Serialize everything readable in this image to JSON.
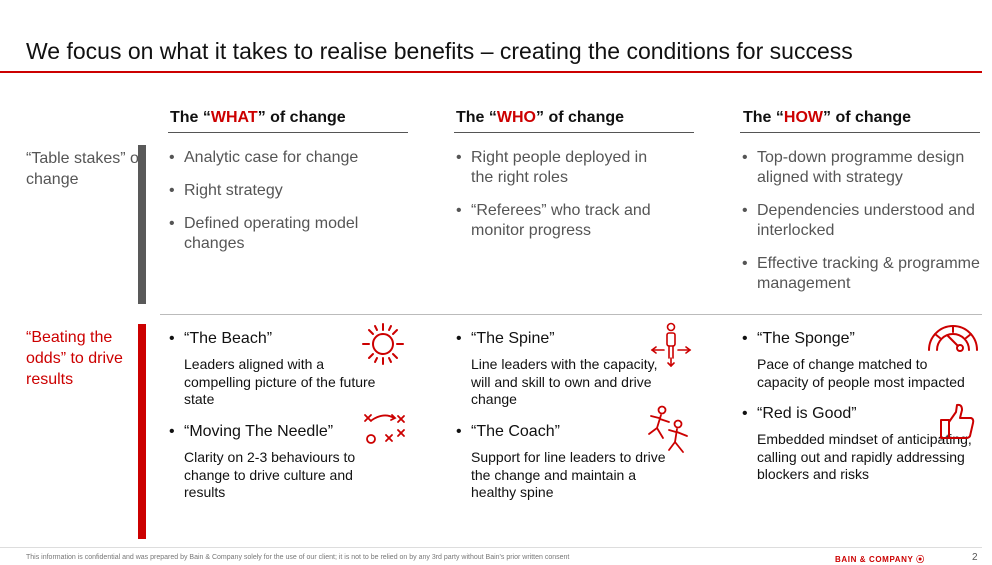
{
  "title": "We focus on what it takes to realise benefits – creating the conditions for success",
  "columns": [
    {
      "pre": "The “",
      "key": "WHAT",
      "post": "” of change"
    },
    {
      "pre": "The “",
      "key": "WHO",
      "post": "” of change"
    },
    {
      "pre": "The “",
      "key": "HOW",
      "post": "” of change"
    }
  ],
  "rows": {
    "table_stakes": {
      "label": "“Table stakes” of change",
      "what": [
        "Analytic case for change",
        "Right strategy",
        "Defined operating model changes"
      ],
      "who": [
        "Right people deployed in the right roles",
        "“Referees” who track and monitor progress"
      ],
      "how": [
        "Top-down programme design aligned with strategy",
        "Dependencies understood and interlocked",
        "Effective tracking & programme management"
      ]
    },
    "beating_odds": {
      "label": "“Beating the odds” to drive results",
      "what": [
        {
          "title": "“The Beach”",
          "desc": "Leaders aligned with a compelling picture of the future state",
          "icon": "sun-icon"
        },
        {
          "title": "“Moving The Needle”",
          "desc": "Clarity on 2-3 behaviours to change to drive culture and results",
          "icon": "play-diagram-icon"
        }
      ],
      "who": [
        {
          "title": "“The Spine”",
          "desc": "Line leaders with the capacity, will and skill to own and drive change",
          "icon": "person-arrows-icon"
        },
        {
          "title": "“The Coach”",
          "desc": "Support for line leaders to drive the change and maintain a healthy spine",
          "icon": "coach-runners-icon"
        }
      ],
      "how": [
        {
          "title": "“The Sponge”",
          "desc": "Pace of change matched to capacity of people most impacted",
          "icon": "gauge-icon"
        },
        {
          "title": "“Red is Good”",
          "desc": "Embedded mindset of anticipating, calling out and rapidly addressing blockers and risks",
          "icon": "thumbs-up-icon"
        }
      ]
    }
  },
  "footer": {
    "note": "This information is confidential and was prepared by Bain & Company solely for the use of our client; it is not to be relied on by any 3rd party without Bain's prior written consent",
    "brand": "BAIN & COMPANY ⦿",
    "page": "2"
  },
  "colors": {
    "accent": "#cc0000",
    "grey_bar": "#595959",
    "text": "#333333"
  }
}
